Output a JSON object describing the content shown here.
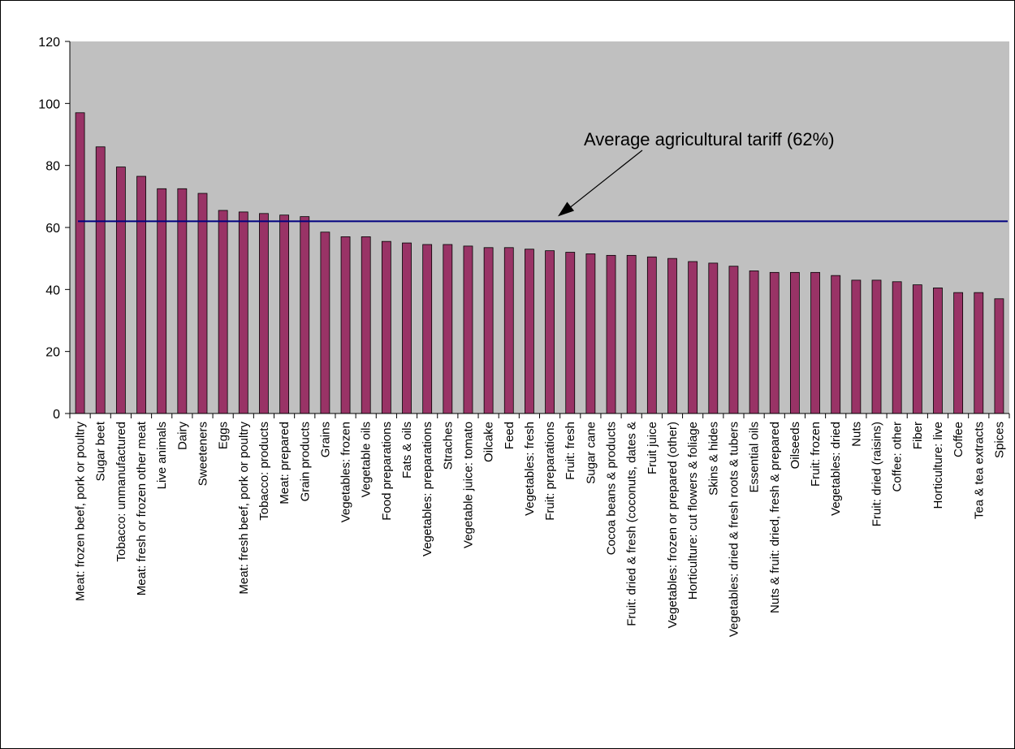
{
  "chart_data": {
    "type": "bar",
    "categories": [
      "Meat: frozen beef, pork or poultry",
      "Sugar beet",
      "Tobacco: unmanufactured",
      "Meat: fresh or frozen other meat",
      "Live animals",
      "Dairy",
      "Sweeteners",
      "Eggs",
      "Meat: fresh beef, pork or poultry",
      "Tobacco: products",
      "Meat: prepared",
      "Grain products",
      "Grains",
      "Vegetables: frozen",
      "Vegetable oils",
      "Food preparations",
      "Fats & oils",
      "Vegetables: preparations",
      "Straches",
      "Vegetable juice: tomato",
      "Oilcake",
      "Feed",
      "Vegetables: fresh",
      "Fruit: preparations",
      "Fruit: fresh",
      "Sugar cane",
      "Cocoa beans & products",
      "Fruit: dried & fresh (coconuts, dates &",
      "Fruit juice",
      "Vegetables: frozen or prepared (other)",
      "Horticulture: cut flowers & foliage",
      "Skins & hides",
      "Vegetables: dried & fresh roots & tubers",
      "Essential oils",
      "Nuts & fruit: dried, fresh & prepared",
      "Oilseeds",
      "Fruit: frozen",
      "Vegetables: dried",
      "Nuts",
      "Fruit: dried (raisins)",
      "Coffee: other",
      "Fiber",
      "Horticulture: live",
      "Coffee",
      "Tea & tea extracts",
      "Spices"
    ],
    "values": [
      97,
      86,
      79.5,
      76.5,
      72.5,
      72.5,
      71,
      65.5,
      65,
      64.5,
      64,
      63.5,
      58.5,
      57,
      57,
      55.5,
      55,
      54.5,
      54.5,
      54,
      53.5,
      53.5,
      53,
      52.5,
      52,
      51.5,
      51,
      51,
      50.5,
      50,
      49,
      48.5,
      47.5,
      46,
      45.5,
      45.5,
      45.5,
      44.5,
      43,
      43,
      42.5,
      41.5,
      40.5,
      39,
      39,
      37
    ],
    "ylim": [
      0,
      120
    ],
    "yticks": [
      "0",
      "20",
      "40",
      "60",
      "80",
      "100",
      "120"
    ],
    "reference_line": {
      "value": 62,
      "label": "Average agricultural tariff (62%)",
      "color": "#000080"
    },
    "colors": {
      "bar": "#993366",
      "plot_background": "#c0c0c0",
      "axis": "#000000"
    },
    "grid": false,
    "legend": "none"
  }
}
